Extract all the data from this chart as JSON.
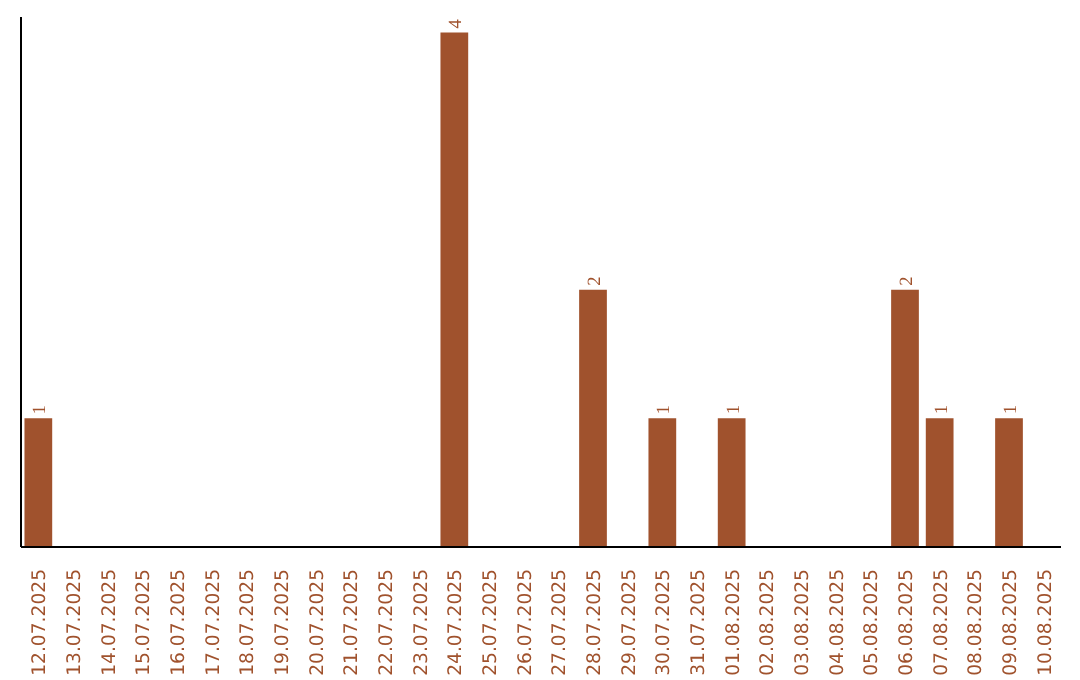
{
  "chart_data": {
    "type": "bar",
    "categories": [
      "12.07.2025",
      "13.07.2025",
      "14.07.2025",
      "15.07.2025",
      "16.07.2025",
      "17.07.2025",
      "18.07.2025",
      "19.07.2025",
      "20.07.2025",
      "21.07.2025",
      "22.07.2025",
      "23.07.2025",
      "24.07.2025",
      "25.07.2025",
      "26.07.2025",
      "27.07.2025",
      "28.07.2025",
      "29.07.2025",
      "30.07.2025",
      "31.07.2025",
      "01.08.2025",
      "02.08.2025",
      "03.08.2025",
      "04.08.2025",
      "05.08.2025",
      "06.08.2025",
      "07.08.2025",
      "08.08.2025",
      "09.08.2025",
      "10.08.2025"
    ],
    "values": [
      1,
      0,
      0,
      0,
      0,
      0,
      0,
      0,
      0,
      0,
      0,
      0,
      4,
      0,
      0,
      0,
      2,
      0,
      1,
      0,
      1,
      0,
      0,
      0,
      0,
      2,
      1,
      0,
      1,
      0
    ],
    "value_labels": [
      "1",
      null,
      null,
      null,
      null,
      null,
      null,
      null,
      null,
      null,
      null,
      null,
      "4",
      null,
      null,
      null,
      "2",
      null,
      "1",
      null,
      "1",
      null,
      null,
      null,
      null,
      "2",
      "1",
      null,
      "1",
      null
    ],
    "color": "#a0522d",
    "grid": false
  }
}
